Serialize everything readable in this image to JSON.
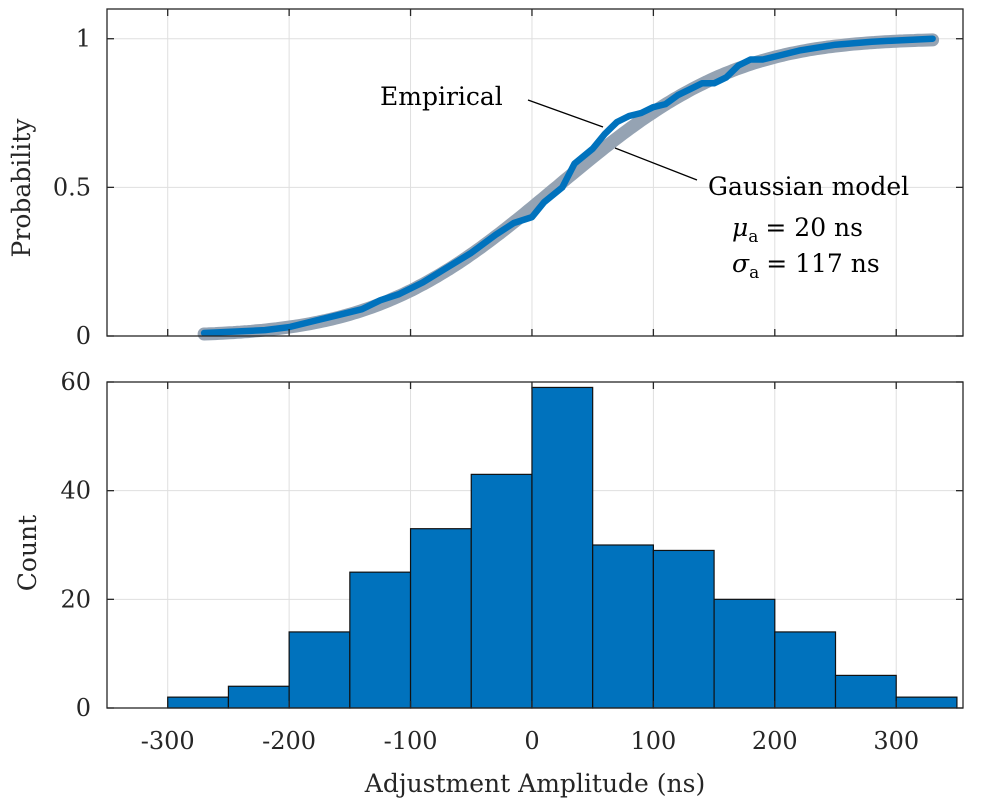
{
  "chart_data": [
    {
      "type": "line",
      "ylabel": "Probability",
      "xlim": [
        -350,
        355
      ],
      "ylim": [
        0,
        1.1
      ],
      "yticks": [
        0,
        0.5,
        1
      ],
      "ytick_labels": [
        "0",
        "0.5",
        "1"
      ],
      "grid": true,
      "series": [
        {
          "name": "Empirical",
          "color": "#0072bd",
          "x": [
            -270,
            -220,
            -200,
            -180,
            -160,
            -140,
            -125,
            -110,
            -90,
            -70,
            -50,
            -30,
            -15,
            0,
            10,
            25,
            35,
            50,
            60,
            70,
            80,
            90,
            100,
            110,
            120,
            130,
            140,
            150,
            160,
            170,
            180,
            190,
            200,
            220,
            250,
            280,
            330
          ],
          "y": [
            0.01,
            0.02,
            0.03,
            0.05,
            0.07,
            0.09,
            0.12,
            0.14,
            0.18,
            0.23,
            0.28,
            0.34,
            0.38,
            0.4,
            0.45,
            0.5,
            0.58,
            0.63,
            0.68,
            0.72,
            0.74,
            0.75,
            0.77,
            0.78,
            0.81,
            0.83,
            0.85,
            0.85,
            0.87,
            0.91,
            0.93,
            0.93,
            0.94,
            0.96,
            0.98,
            0.99,
            1.0
          ]
        },
        {
          "name": "Gaussian model",
          "color": "#95a3b3",
          "mu": 20,
          "sigma": 117,
          "x_range": [
            -270,
            330
          ]
        }
      ],
      "annotations": {
        "empirical": "Empirical",
        "model": "Gaussian model",
        "mu_sym": "μ",
        "mu_sub": "a",
        "mu_val": "= 20 ns",
        "sigma_sym": "σ",
        "sigma_sub": "a",
        "sigma_val": "= 117 ns"
      }
    },
    {
      "type": "bar",
      "ylabel": "Count",
      "xlabel": "Adjustment Amplitude (ns)",
      "xlim": [
        -350,
        355
      ],
      "ylim": [
        0,
        60
      ],
      "yticks": [
        0,
        20,
        40,
        60
      ],
      "ytick_labels": [
        "0",
        "20",
        "40",
        "60"
      ],
      "xticks": [
        -300,
        -200,
        -100,
        0,
        100,
        200,
        300
      ],
      "xtick_labels": [
        "-300",
        "-200",
        "-100",
        "0",
        "100",
        "200",
        "300"
      ],
      "grid": true,
      "bar_color": "#0072bd",
      "bin_edges": [
        -300,
        -250,
        -200,
        -150,
        -100,
        -50,
        0,
        50,
        100,
        150,
        200,
        250,
        300,
        350
      ],
      "values": [
        2,
        4,
        14,
        25,
        33,
        43,
        59,
        30,
        29,
        20,
        14,
        6,
        2
      ]
    }
  ]
}
